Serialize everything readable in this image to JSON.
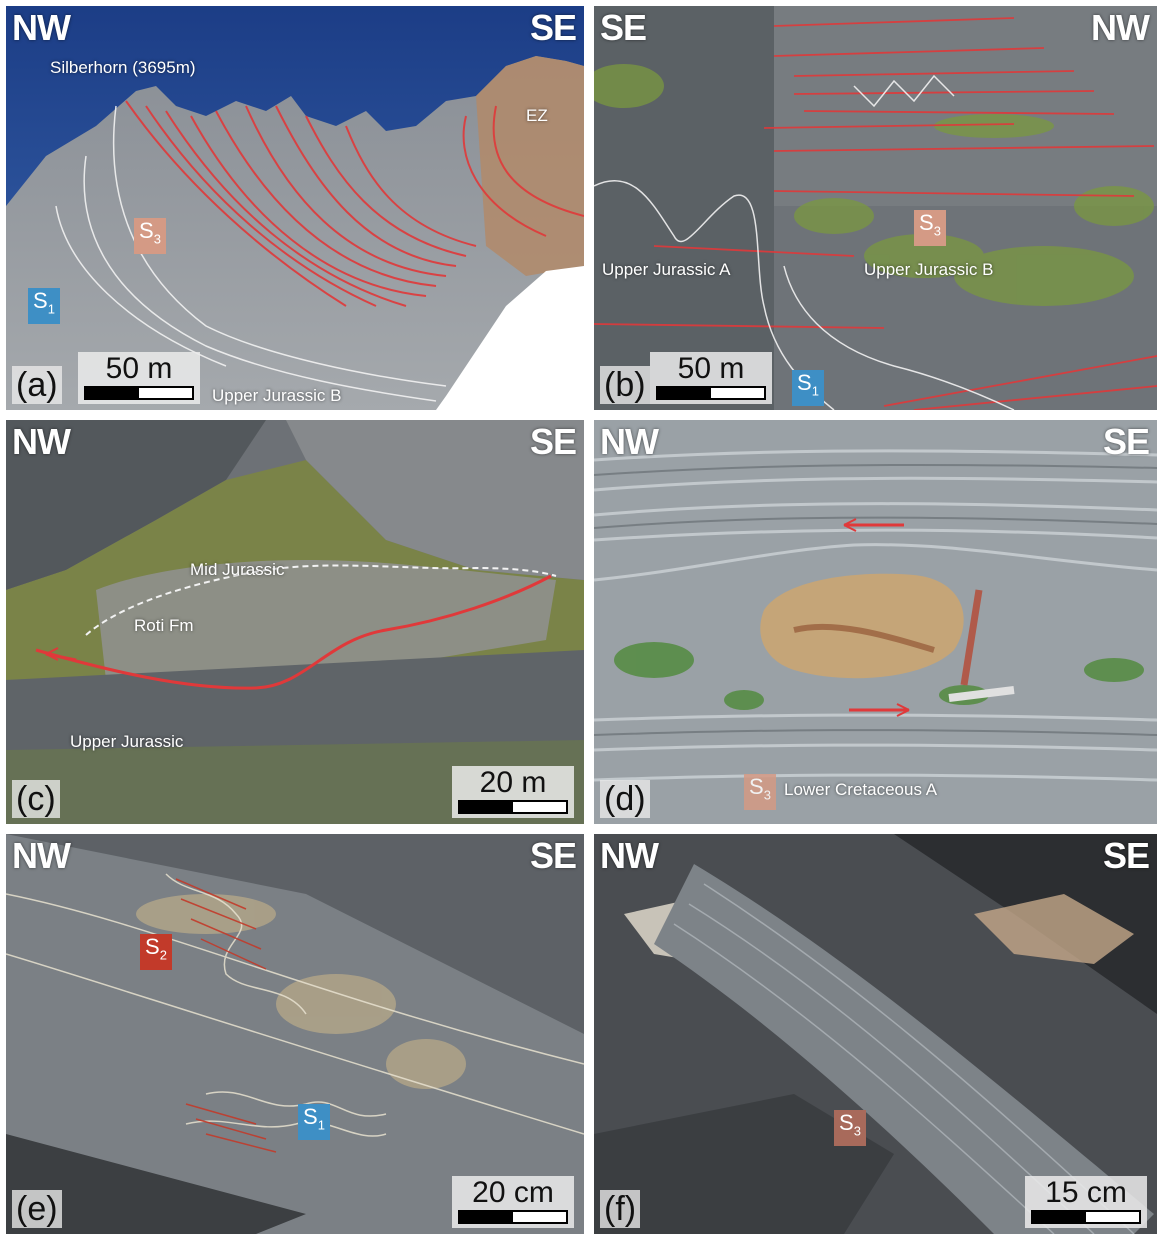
{
  "panels": {
    "a": {
      "label": "(a)",
      "left": "NW",
      "right": "SE",
      "peak": "Silberhorn (3695m)",
      "zone": "EZ",
      "s3": "S",
      "s3_sub": "3",
      "s1": "S",
      "s1_sub": "1",
      "scale": "50 m",
      "unit": "Upper Jurassic B"
    },
    "b": {
      "label": "(b)",
      "left": "SE",
      "right": "NW",
      "unit_a": "Upper Jurassic A",
      "unit_b": "Upper Jurassic B",
      "s3": "S",
      "s3_sub": "3",
      "s1": "S",
      "s1_sub": "1",
      "scale": "50 m"
    },
    "c": {
      "label": "(c)",
      "left": "NW",
      "right": "SE",
      "mid": "Mid Jurassic",
      "roti": "Roti Fm",
      "upper": "Upper Jurassic",
      "scale": "20 m"
    },
    "d": {
      "label": "(d)",
      "left": "NW",
      "right": "SE",
      "s3": "S",
      "s3_sub": "3",
      "unit": "Lower Cretaceous A"
    },
    "e": {
      "label": "(e)",
      "left": "NW",
      "right": "SE",
      "s2": "S",
      "s2_sub": "2",
      "s1": "S",
      "s1_sub": "1",
      "scale": "20 cm"
    },
    "f": {
      "label": "(f)",
      "left": "NW",
      "right": "SE",
      "s3": "S",
      "s3_sub": "3",
      "scale": "15 cm"
    }
  },
  "colors": {
    "s1_tag": "#3e8fc5",
    "s2_tag": "#c23a2a",
    "s3_tag": "#d49a85",
    "fault_red": "#e0393a",
    "trace_white": "#f2f2f2"
  }
}
